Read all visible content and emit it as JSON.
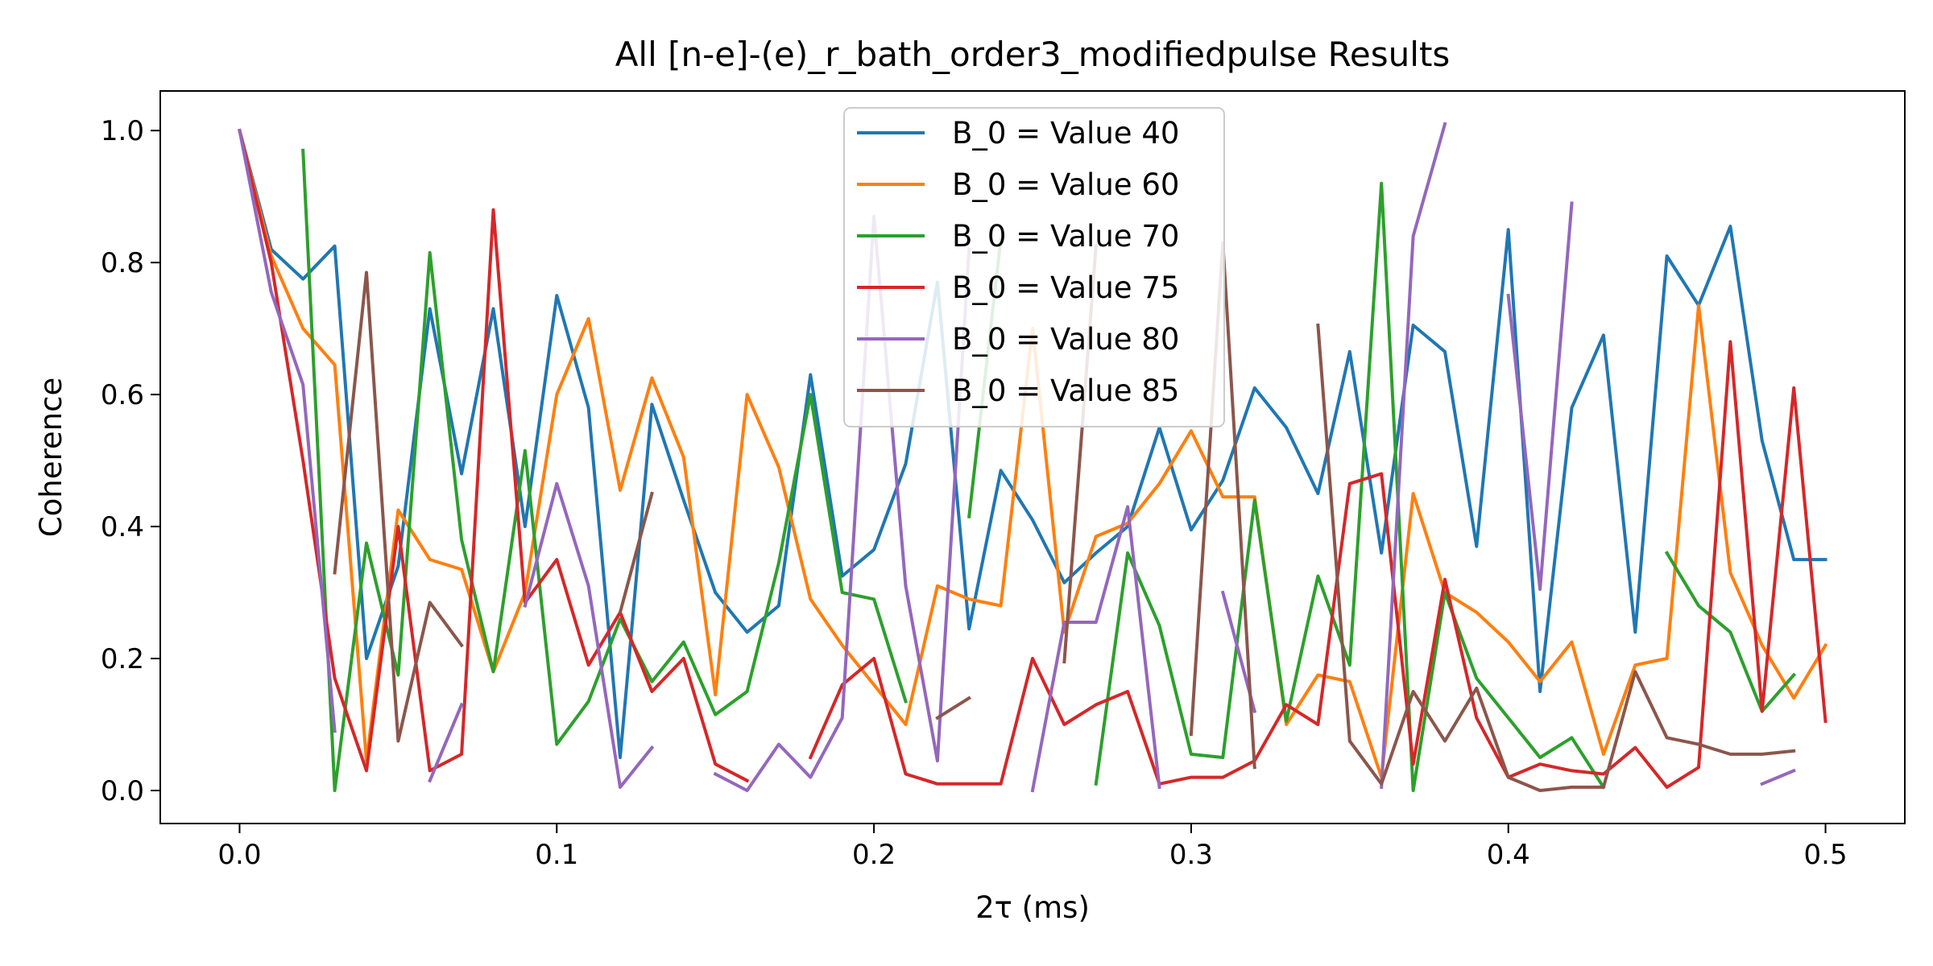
{
  "chart_data": {
    "type": "line",
    "title": "All [n-e]-(e)_r_bath_order3_modifiedpulse Results",
    "xlabel": "2τ (ms)",
    "ylabel": "Coherence",
    "xlim": [
      -0.025,
      0.525
    ],
    "ylim": [
      -0.05,
      1.06
    ],
    "xticks": [
      0.0,
      0.1,
      0.2,
      0.3,
      0.4,
      0.5
    ],
    "xtick_labels": [
      "0.0",
      "0.1",
      "0.2",
      "0.3",
      "0.4",
      "0.5"
    ],
    "yticks": [
      0.0,
      0.2,
      0.4,
      0.6,
      0.8,
      1.0
    ],
    "ytick_labels": [
      "0.0",
      "0.2",
      "0.4",
      "0.6",
      "0.8",
      "1.0"
    ],
    "grid": false,
    "legend_position": "top-center",
    "x": [
      0.0,
      0.01,
      0.02,
      0.03,
      0.04,
      0.05,
      0.06,
      0.07,
      0.08,
      0.09,
      0.1,
      0.11,
      0.12,
      0.13,
      0.14,
      0.15,
      0.16,
      0.17,
      0.18,
      0.19,
      0.2,
      0.21,
      0.22,
      0.23,
      0.24,
      0.25,
      0.26,
      0.27,
      0.28,
      0.29,
      0.3,
      0.31,
      0.32,
      0.33,
      0.34,
      0.35,
      0.36,
      0.37,
      0.38,
      0.39,
      0.4,
      0.41,
      0.42,
      0.43,
      0.44,
      0.45,
      0.46,
      0.47,
      0.48,
      0.49,
      0.5
    ],
    "series": [
      {
        "name": "B_0 = Value 40",
        "color": "#1f77b4",
        "values": [
          1.0,
          0.82,
          0.775,
          0.825,
          0.2,
          0.34,
          0.73,
          0.48,
          0.73,
          0.4,
          0.75,
          0.58,
          0.05,
          0.585,
          0.44,
          0.3,
          0.24,
          0.28,
          0.63,
          0.325,
          0.365,
          0.495,
          0.77,
          0.245,
          0.485,
          0.41,
          0.315,
          0.36,
          0.4,
          0.55,
          0.395,
          0.47,
          0.61,
          0.55,
          0.45,
          0.665,
          0.36,
          0.705,
          0.665,
          0.37,
          0.85,
          0.15,
          0.58,
          0.69,
          0.24,
          0.81,
          0.735,
          0.855,
          0.53,
          0.35,
          0.35
        ]
      },
      {
        "name": "B_0 = Value 60",
        "color": "#ff7f0e",
        "values": [
          1.0,
          0.81,
          0.7,
          0.645,
          0.045,
          0.425,
          0.35,
          0.335,
          0.18,
          0.3,
          0.6,
          0.715,
          0.455,
          0.625,
          0.505,
          0.145,
          0.6,
          0.49,
          0.29,
          0.22,
          0.16,
          0.1,
          0.31,
          0.29,
          0.28,
          0.7,
          0.24,
          0.385,
          0.405,
          0.465,
          0.545,
          0.445,
          0.445,
          0.1,
          0.175,
          0.165,
          0.02,
          0.45,
          0.3,
          0.27,
          0.225,
          0.165,
          0.225,
          0.055,
          0.19,
          0.2,
          0.735,
          0.33,
          0.22,
          0.14,
          0.22
        ]
      },
      {
        "name": "B_0 = Value 70",
        "color": "#2ca02c",
        "values": [
          null,
          null,
          0.97,
          0.0,
          0.375,
          0.175,
          0.815,
          0.38,
          0.18,
          0.515,
          0.07,
          0.135,
          0.26,
          0.165,
          0.225,
          0.115,
          0.15,
          0.345,
          0.6,
          0.3,
          0.29,
          0.135,
          null,
          0.415,
          0.835,
          null,
          null,
          0.01,
          0.36,
          0.25,
          0.055,
          0.05,
          0.44,
          0.105,
          0.325,
          0.19,
          0.92,
          0.0,
          0.3,
          0.17,
          0.11,
          0.05,
          0.08,
          0.005,
          null,
          0.36,
          0.28,
          0.24,
          0.12,
          0.175,
          null
        ]
      },
      {
        "name": "B_0 = Value 75",
        "color": "#d62728",
        "values": [
          1.0,
          0.8,
          0.5,
          0.17,
          0.03,
          0.4,
          0.03,
          0.055,
          0.88,
          0.285,
          0.35,
          0.19,
          0.27,
          0.15,
          0.2,
          0.04,
          0.015,
          null,
          0.05,
          0.16,
          0.2,
          0.025,
          0.01,
          0.01,
          0.01,
          0.2,
          0.1,
          0.13,
          0.15,
          0.01,
          0.02,
          0.02,
          0.045,
          0.13,
          0.1,
          0.465,
          0.48,
          0.04,
          0.32,
          0.11,
          0.02,
          0.04,
          0.03,
          0.025,
          0.065,
          0.005,
          0.035,
          0.68,
          0.12,
          0.61,
          0.105
        ]
      },
      {
        "name": "B_0 = Value 80",
        "color": "#9467bd",
        "values": [
          1.0,
          0.755,
          0.615,
          0.09,
          null,
          null,
          0.015,
          0.13,
          null,
          0.28,
          0.465,
          0.31,
          0.005,
          0.065,
          null,
          0.025,
          0.0,
          0.07,
          0.02,
          0.11,
          0.87,
          0.31,
          0.045,
          0.82,
          null,
          0.0,
          0.255,
          0.255,
          0.43,
          0.005,
          null,
          0.3,
          0.12,
          null,
          null,
          null,
          0.005,
          0.84,
          1.01,
          null,
          0.75,
          0.305,
          0.89,
          null,
          null,
          null,
          null,
          null,
          0.01,
          0.03,
          null
        ]
      },
      {
        "name": "B_0 = Value 85",
        "color": "#8c564b",
        "values": [
          null,
          null,
          null,
          0.33,
          0.785,
          0.075,
          0.285,
          0.22,
          null,
          null,
          null,
          null,
          0.27,
          0.45,
          null,
          null,
          null,
          null,
          null,
          null,
          null,
          null,
          0.11,
          0.14,
          null,
          null,
          0.195,
          0.825,
          null,
          null,
          0.085,
          0.83,
          0.035,
          null,
          0.705,
          0.075,
          0.01,
          0.15,
          0.075,
          0.155,
          0.02,
          0.0,
          0.005,
          0.005,
          0.18,
          0.08,
          0.07,
          0.055,
          0.055,
          0.06,
          null
        ]
      }
    ]
  }
}
